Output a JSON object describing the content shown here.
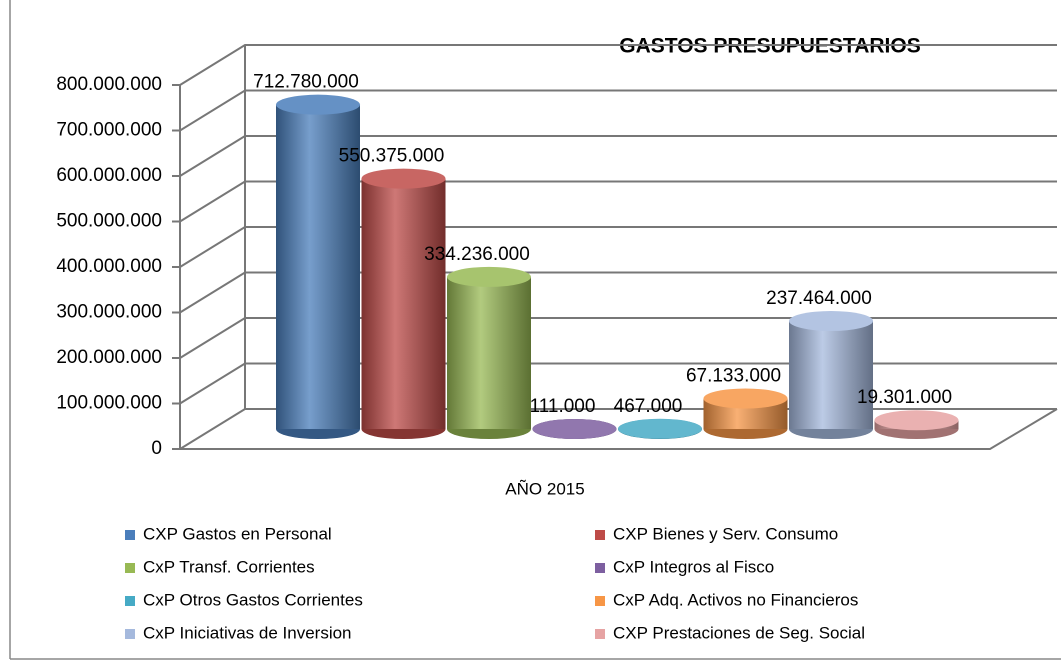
{
  "chart_data": {
    "type": "bar",
    "title": "GASTOS PRESUPUESTARIOS",
    "categories": [
      "AÑO 2015"
    ],
    "series": [
      {
        "name": "CXP Gastos en Personal",
        "color": "#4a7ebb",
        "values": [
          712780000
        ],
        "value_labels": [
          "712.780.000"
        ]
      },
      {
        "name": "CXP Bienes y Serv. Consumo",
        "color": "#be4b48",
        "values": [
          550375000
        ],
        "value_labels": [
          "550.375.000"
        ]
      },
      {
        "name": "CxP Transf. Corrientes",
        "color": "#98b954",
        "values": [
          334236000
        ],
        "value_labels": [
          "334.236.000"
        ]
      },
      {
        "name": "CxP Integros al Fisco",
        "color": "#7d5fa0",
        "values": [
          111000
        ],
        "value_labels": [
          "111.000"
        ]
      },
      {
        "name": "CxP Otros Gastos Corrientes",
        "color": "#46aac5",
        "values": [
          467000
        ],
        "value_labels": [
          "467.000"
        ]
      },
      {
        "name": "CxP Adq. Activos no Financieros",
        "color": "#f79646",
        "values": [
          67133000
        ],
        "value_labels": [
          "67.133.000"
        ]
      },
      {
        "name": "CxP Iniciativas de Inversion",
        "color": "#a5b9dd",
        "values": [
          237464000
        ],
        "value_labels": [
          "237.464.000"
        ]
      },
      {
        "name": "CXP Prestaciones de Seg. Social",
        "color": "#e6a3a3",
        "values": [
          19301000
        ],
        "value_labels": [
          "19.301.000"
        ]
      }
    ],
    "ylim": [
      0,
      800000000
    ],
    "yticks": [
      0,
      {
        "value": 100000000,
        "label": "100.000.000"
      },
      {
        "value": 200000000,
        "label": "200.000.000"
      },
      {
        "value": 300000000,
        "label": "300.000.000"
      },
      {
        "value": 400000000,
        "label": "400.000.000"
      },
      {
        "value": 500000000,
        "label": "500.000.000"
      },
      {
        "value": 600000000,
        "label": "600.000.000"
      },
      {
        "value": 700000000,
        "label": "700.000.000"
      },
      {
        "value": 800000000,
        "label": "800.000.000"
      }
    ],
    "grid": true
  }
}
